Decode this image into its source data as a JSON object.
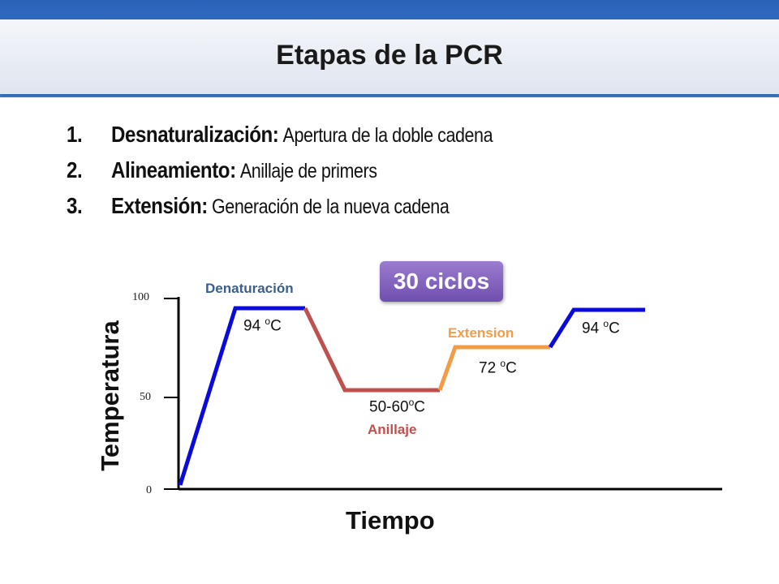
{
  "slide": {
    "title": "Etapas de la PCR",
    "steps": [
      {
        "number": "1.",
        "term": "Desnaturalización:",
        "description": "Apertura de la doble cadena"
      },
      {
        "number": "2.",
        "term": "Alineamiento:",
        "description": "Anillaje de primers"
      },
      {
        "number": "3.",
        "term": "Extensión:",
        "description": "Generación de la nueva cadena"
      }
    ]
  },
  "diagram": {
    "badge": "30 ciclos",
    "x_axis_label": "Tiempo",
    "y_axis_label": "Temperatura",
    "y_ticks": [
      "100",
      "50",
      "0"
    ],
    "stage_labels": {
      "denaturation": "Denaturación",
      "extension": "Extension",
      "annealing": "Anillaje"
    },
    "temperature_labels": {
      "denaturation": {
        "value": "94 ",
        "sup": "o",
        "unit": "C"
      },
      "annealing": {
        "value": "50-60",
        "sup": "o",
        "unit": "C"
      },
      "extension": {
        "value": "72 ",
        "sup": "o",
        "unit": "C"
      },
      "denaturation_repeat": {
        "value": "94 ",
        "sup": "o",
        "unit": "C"
      }
    },
    "segment_colors": {
      "denaturation": "#0a0adc",
      "annealing": "#c0504d",
      "extension": "#f39c45",
      "axis": "#000000"
    }
  }
}
